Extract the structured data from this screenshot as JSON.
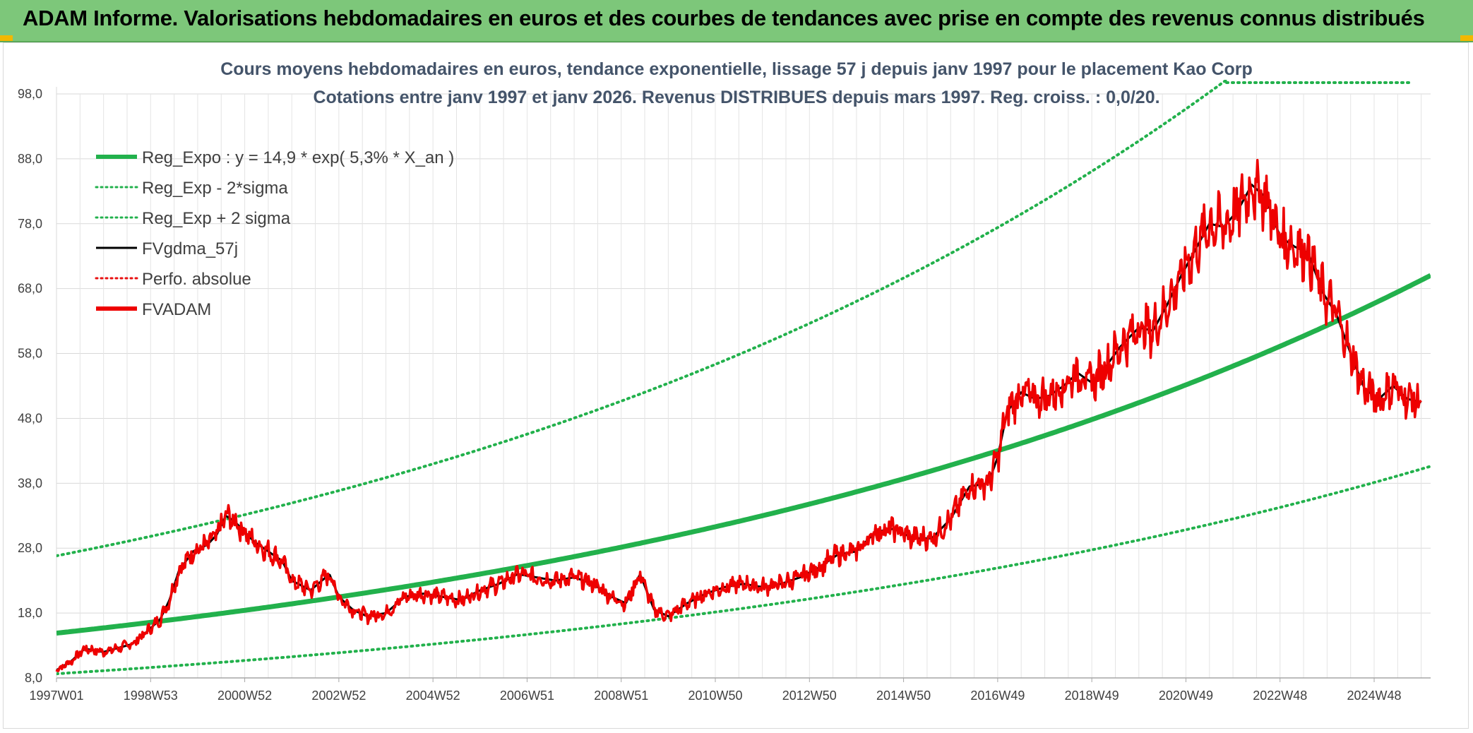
{
  "header": {
    "title": "ADAM Informe. Valorisations hebdomadaires en euros et des courbes de tendances avec prise en compte des revenus connus distribués"
  },
  "chart_data": {
    "type": "line",
    "title": "Cours moyens hebdomadaires en euros, tendance exponentielle, lissage 57 j depuis janv 1997 pour le placement Kao Corp",
    "subtitle": "Cotations entre janv 1997 et janv 2026. Revenus DISTRIBUES depuis mars 1997. Reg. croiss. : 0,0/20.",
    "xlabel": "",
    "ylabel": "",
    "x_range": [
      1997.0,
      2026.2
    ],
    "ylim": [
      8,
      98
    ],
    "y_ticks": [
      8,
      18,
      28,
      38,
      48,
      58,
      68,
      78,
      88,
      98
    ],
    "y_tick_labels": [
      "8,0",
      "18,0",
      "28,0",
      "38,0",
      "48,0",
      "58,0",
      "68,0",
      "78,0",
      "88,0",
      "98,0"
    ],
    "x_ticks": [
      {
        "label": "1997W01",
        "x": 1997.0
      },
      {
        "label": "1998W53",
        "x": 1999.0
      },
      {
        "label": "2000W52",
        "x": 2001.0
      },
      {
        "label": "2002W52",
        "x": 2003.0
      },
      {
        "label": "2004W52",
        "x": 2005.0
      },
      {
        "label": "2006W51",
        "x": 2007.0
      },
      {
        "label": "2008W51",
        "x": 2009.0
      },
      {
        "label": "2010W50",
        "x": 2011.0
      },
      {
        "label": "2012W50",
        "x": 2013.0
      },
      {
        "label": "2014W50",
        "x": 2015.0
      },
      {
        "label": "2016W49",
        "x": 2017.0
      },
      {
        "label": "2018W49",
        "x": 2019.0
      },
      {
        "label": "2020W49",
        "x": 2021.0
      },
      {
        "label": "2022W48",
        "x": 2023.0
      },
      {
        "label": "2024W48",
        "x": 2025.0
      }
    ],
    "grid": true,
    "legend_position": "top-left",
    "series": [
      {
        "name": "Reg_Expo : y = 14,9 * exp( 5,3% *  X_an )",
        "color": "#22b14c",
        "style": "solid-thick",
        "formula": {
          "a": 14.9,
          "rate": 0.053,
          "factor": 1
        }
      },
      {
        "name": "Reg_Exp - 2*sigma",
        "color": "#22b14c",
        "style": "dotted",
        "formula": {
          "a": 14.9,
          "rate": 0.053,
          "factor": 0.58
        }
      },
      {
        "name": "Reg_Exp + 2 sigma",
        "color": "#22b14c",
        "style": "dotted",
        "formula": {
          "a": 14.9,
          "rate": 0.053,
          "factor": 1.8
        }
      },
      {
        "name": "FVgdma_57j",
        "color": "#000000",
        "style": "solid"
      },
      {
        "name": "Perfo. absolue",
        "color": "#e81010",
        "style": "dotted"
      },
      {
        "name": "FVADAM",
        "color": "#ee0000",
        "style": "solid-thick",
        "points": [
          [
            1997.0,
            9.2
          ],
          [
            1997.3,
            10.5
          ],
          [
            1997.6,
            12.5
          ],
          [
            1998.0,
            12.0
          ],
          [
            1998.3,
            12.6
          ],
          [
            1998.6,
            13.2
          ],
          [
            1998.9,
            15.0
          ],
          [
            1999.2,
            17.0
          ],
          [
            1999.4,
            20.0
          ],
          [
            1999.6,
            24.5
          ],
          [
            1999.9,
            27.5
          ],
          [
            2000.2,
            28.5
          ],
          [
            2000.4,
            30.0
          ],
          [
            2000.6,
            33.0
          ],
          [
            2000.8,
            32.0
          ],
          [
            2001.0,
            30.5
          ],
          [
            2001.2,
            29.0
          ],
          [
            2001.5,
            27.5
          ],
          [
            2001.8,
            26.0
          ],
          [
            2002.0,
            23.0
          ],
          [
            2002.4,
            21.5
          ],
          [
            2002.8,
            24.0
          ],
          [
            2003.0,
            20.5
          ],
          [
            2003.3,
            18.5
          ],
          [
            2003.6,
            17.5
          ],
          [
            2004.0,
            18.0
          ],
          [
            2004.4,
            20.5
          ],
          [
            2004.8,
            21.0
          ],
          [
            2005.2,
            20.5
          ],
          [
            2005.6,
            20.0
          ],
          [
            2006.0,
            21.5
          ],
          [
            2006.4,
            22.5
          ],
          [
            2006.8,
            24.0
          ],
          [
            2007.2,
            23.5
          ],
          [
            2007.6,
            23.0
          ],
          [
            2008.0,
            23.5
          ],
          [
            2008.4,
            22.5
          ],
          [
            2008.8,
            20.5
          ],
          [
            2009.1,
            19.5
          ],
          [
            2009.4,
            24.0
          ],
          [
            2009.7,
            18.5
          ],
          [
            2010.0,
            17.5
          ],
          [
            2010.4,
            19.5
          ],
          [
            2010.8,
            21.0
          ],
          [
            2011.2,
            22.0
          ],
          [
            2011.6,
            22.5
          ],
          [
            2012.0,
            22.0
          ],
          [
            2012.4,
            22.5
          ],
          [
            2012.8,
            23.5
          ],
          [
            2013.2,
            25.0
          ],
          [
            2013.6,
            27.0
          ],
          [
            2014.0,
            27.5
          ],
          [
            2014.4,
            30.5
          ],
          [
            2014.8,
            31.0
          ],
          [
            2015.2,
            29.5
          ],
          [
            2015.6,
            29.5
          ],
          [
            2016.0,
            32.5
          ],
          [
            2016.4,
            37.5
          ],
          [
            2016.8,
            38.0
          ],
          [
            2017.0,
            42.0
          ],
          [
            2017.2,
            49.0
          ],
          [
            2017.5,
            52.0
          ],
          [
            2017.8,
            51.0
          ],
          [
            2018.1,
            51.5
          ],
          [
            2018.4,
            53.0
          ],
          [
            2018.7,
            55.0
          ],
          [
            2019.0,
            53.5
          ],
          [
            2019.3,
            56.0
          ],
          [
            2019.6,
            59.0
          ],
          [
            2020.0,
            62.0
          ],
          [
            2020.3,
            61.5
          ],
          [
            2020.6,
            65.5
          ],
          [
            2020.9,
            70.0
          ],
          [
            2021.2,
            74.0
          ],
          [
            2021.5,
            78.0
          ],
          [
            2021.8,
            77.5
          ],
          [
            2022.1,
            80.0
          ],
          [
            2022.4,
            84.0
          ],
          [
            2022.7,
            82.0
          ],
          [
            2023.0,
            76.0
          ],
          [
            2023.3,
            74.5
          ],
          [
            2023.6,
            73.5
          ],
          [
            2023.9,
            67.5
          ],
          [
            2024.2,
            64.0
          ],
          [
            2024.5,
            58.0
          ],
          [
            2024.8,
            52.5
          ],
          [
            2025.1,
            51.0
          ],
          [
            2025.4,
            53.0
          ],
          [
            2025.7,
            51.0
          ],
          [
            2026.0,
            50.5
          ]
        ]
      }
    ]
  }
}
